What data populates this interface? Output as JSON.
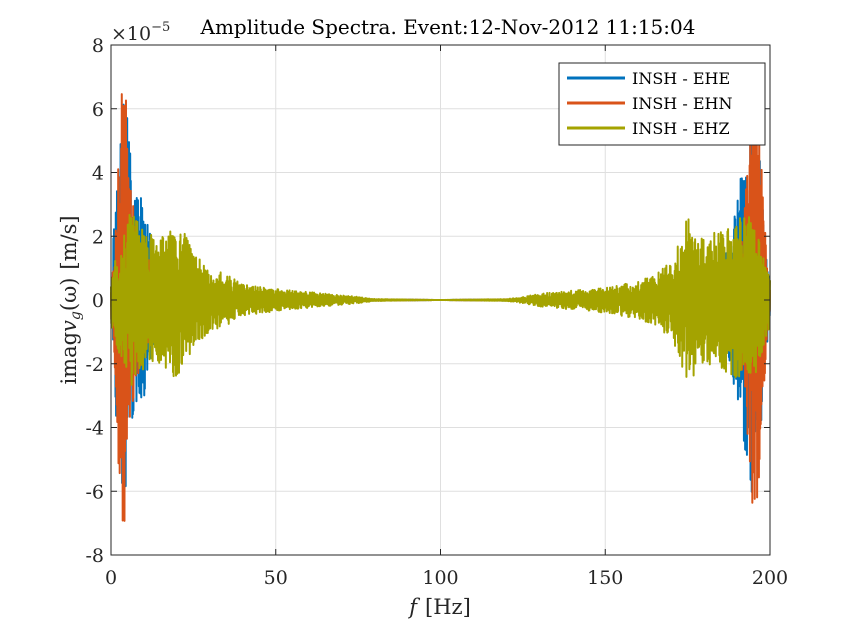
{
  "chart_data": {
    "type": "line",
    "title": "Amplitude Spectra.  Event:12-Nov-2012 11:15:04",
    "y_scale_prefix": "×10",
    "y_scale_exponent": "−5",
    "xlabel_italic": "f",
    "xlabel_unit": "[Hz]",
    "ylabel_prefix": "imag",
    "ylabel_var": "v",
    "ylabel_sub": "g",
    "ylabel_arg": "(ω)",
    "ylabel_unit": "[m/s]",
    "xlim": [
      0,
      200
    ],
    "ylim": [
      -8,
      8
    ],
    "x_ticks": [
      0,
      50,
      100,
      150,
      200
    ],
    "x_tick_labels": [
      "0",
      "50",
      "100",
      "150",
      "200"
    ],
    "y_ticks": [
      -8,
      -6,
      -4,
      -2,
      0,
      2,
      4,
      6,
      8
    ],
    "y_tick_labels": [
      "-8",
      "-6",
      "-4",
      "-2",
      "0",
      "2",
      "4",
      "6",
      "8"
    ],
    "grid": true,
    "legend_position": "top-right",
    "series": [
      {
        "name": "INSH - EHE",
        "color": "#0072BD",
        "envelope_x": [
          0,
          1,
          2,
          3,
          4,
          5,
          6,
          8,
          10,
          12,
          15,
          20,
          30,
          50,
          70,
          80,
          100,
          120,
          130,
          150,
          170,
          180,
          185,
          188,
          190,
          192,
          194,
          195,
          196,
          197,
          198,
          199,
          200
        ],
        "envelope_amp": [
          0.5,
          2.8,
          5.6,
          5.7,
          7.0,
          5.9,
          4.5,
          3.2,
          3.2,
          2.0,
          1.2,
          0.5,
          0.25,
          0.12,
          0.05,
          0.02,
          0.0,
          0.02,
          0.05,
          0.12,
          0.25,
          0.5,
          1.2,
          2.0,
          3.3,
          4.4,
          6.0,
          6.9,
          5.7,
          4.5,
          3.0,
          1.5,
          0.5
        ]
      },
      {
        "name": "INSH - EHN",
        "color": "#D95319",
        "envelope_x": [
          0,
          1,
          2,
          3,
          4,
          5,
          6,
          8,
          10,
          12,
          15,
          20,
          30,
          50,
          70,
          80,
          100,
          120,
          130,
          150,
          170,
          180,
          185,
          188,
          190,
          192,
          194,
          195,
          196,
          197,
          198,
          199,
          200
        ],
        "envelope_amp": [
          0.5,
          1.8,
          4.5,
          6.8,
          7.3,
          5.5,
          3.5,
          2.5,
          1.8,
          1.2,
          0.8,
          0.4,
          0.2,
          0.1,
          0.04,
          0.02,
          0.0,
          0.02,
          0.04,
          0.1,
          0.2,
          0.4,
          0.8,
          1.2,
          1.8,
          2.5,
          5.5,
          7.2,
          6.8,
          5.5,
          3.0,
          1.5,
          0.5
        ]
      },
      {
        "name": "INSH - EHZ",
        "color": "#A4A300",
        "envelope_x": [
          0,
          2,
          4,
          6,
          8,
          10,
          15,
          20,
          25,
          30,
          35,
          40,
          50,
          60,
          70,
          75,
          80,
          100,
          120,
          125,
          130,
          140,
          150,
          160,
          165,
          170,
          175,
          180,
          185,
          190,
          194,
          196,
          198,
          200
        ],
        "envelope_amp": [
          0.8,
          1.5,
          2.2,
          2.8,
          2.5,
          2.2,
          2.0,
          2.6,
          1.5,
          1.0,
          0.8,
          0.5,
          0.35,
          0.25,
          0.15,
          0.1,
          0.03,
          0.0,
          0.03,
          0.1,
          0.2,
          0.3,
          0.4,
          0.6,
          0.8,
          1.2,
          2.6,
          2.0,
          2.2,
          2.5,
          2.8,
          2.2,
          1.5,
          0.8
        ]
      }
    ]
  }
}
